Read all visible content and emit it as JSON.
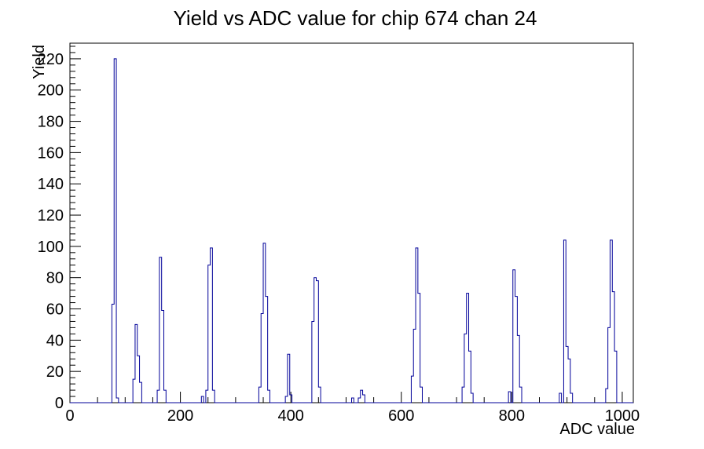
{
  "title": "Yield vs ADC value for chip 674 chan 24",
  "chart_data": {
    "type": "bar",
    "subtype": "histogram-step-outline",
    "title": "Yield vs ADC value for chip 674 chan 24",
    "xlabel": "ADC value",
    "ylabel": "Yield",
    "xlim": [
      0,
      1020
    ],
    "ylim": [
      0,
      230
    ],
    "x_major_ticks": [
      0,
      200,
      400,
      600,
      800,
      1000
    ],
    "x_minor_step": 50,
    "y_major_step": 20,
    "y_major_max": 220,
    "y_minor_step": 4,
    "grid": "off",
    "legend": "none",
    "bin_width": 4,
    "line_color": "#000099",
    "axis_color": "#000000",
    "bins": [
      [
        78,
        63
      ],
      [
        82,
        220
      ],
      [
        86,
        3
      ],
      [
        116,
        15
      ],
      [
        120,
        50
      ],
      [
        124,
        30
      ],
      [
        128,
        13
      ],
      [
        160,
        8
      ],
      [
        164,
        93
      ],
      [
        168,
        59
      ],
      [
        172,
        8
      ],
      [
        240,
        4
      ],
      [
        248,
        8
      ],
      [
        252,
        88
      ],
      [
        256,
        99
      ],
      [
        260,
        8
      ],
      [
        344,
        10
      ],
      [
        348,
        57
      ],
      [
        352,
        102
      ],
      [
        356,
        68
      ],
      [
        360,
        8
      ],
      [
        392,
        4
      ],
      [
        396,
        31
      ],
      [
        400,
        5
      ],
      [
        440,
        52
      ],
      [
        444,
        80
      ],
      [
        448,
        78
      ],
      [
        452,
        10
      ],
      [
        512,
        3
      ],
      [
        524,
        3
      ],
      [
        528,
        8
      ],
      [
        532,
        5
      ],
      [
        620,
        17
      ],
      [
        624,
        47
      ],
      [
        628,
        99
      ],
      [
        632,
        70
      ],
      [
        636,
        10
      ],
      [
        712,
        10
      ],
      [
        716,
        44
      ],
      [
        720,
        70
      ],
      [
        724,
        33
      ],
      [
        728,
        6
      ],
      [
        796,
        7
      ],
      [
        804,
        85
      ],
      [
        808,
        68
      ],
      [
        812,
        43
      ],
      [
        816,
        10
      ],
      [
        888,
        6
      ],
      [
        896,
        104
      ],
      [
        900,
        36
      ],
      [
        904,
        28
      ],
      [
        908,
        6
      ],
      [
        972,
        9
      ],
      [
        976,
        48
      ],
      [
        980,
        104
      ],
      [
        984,
        71
      ],
      [
        988,
        33
      ]
    ]
  }
}
